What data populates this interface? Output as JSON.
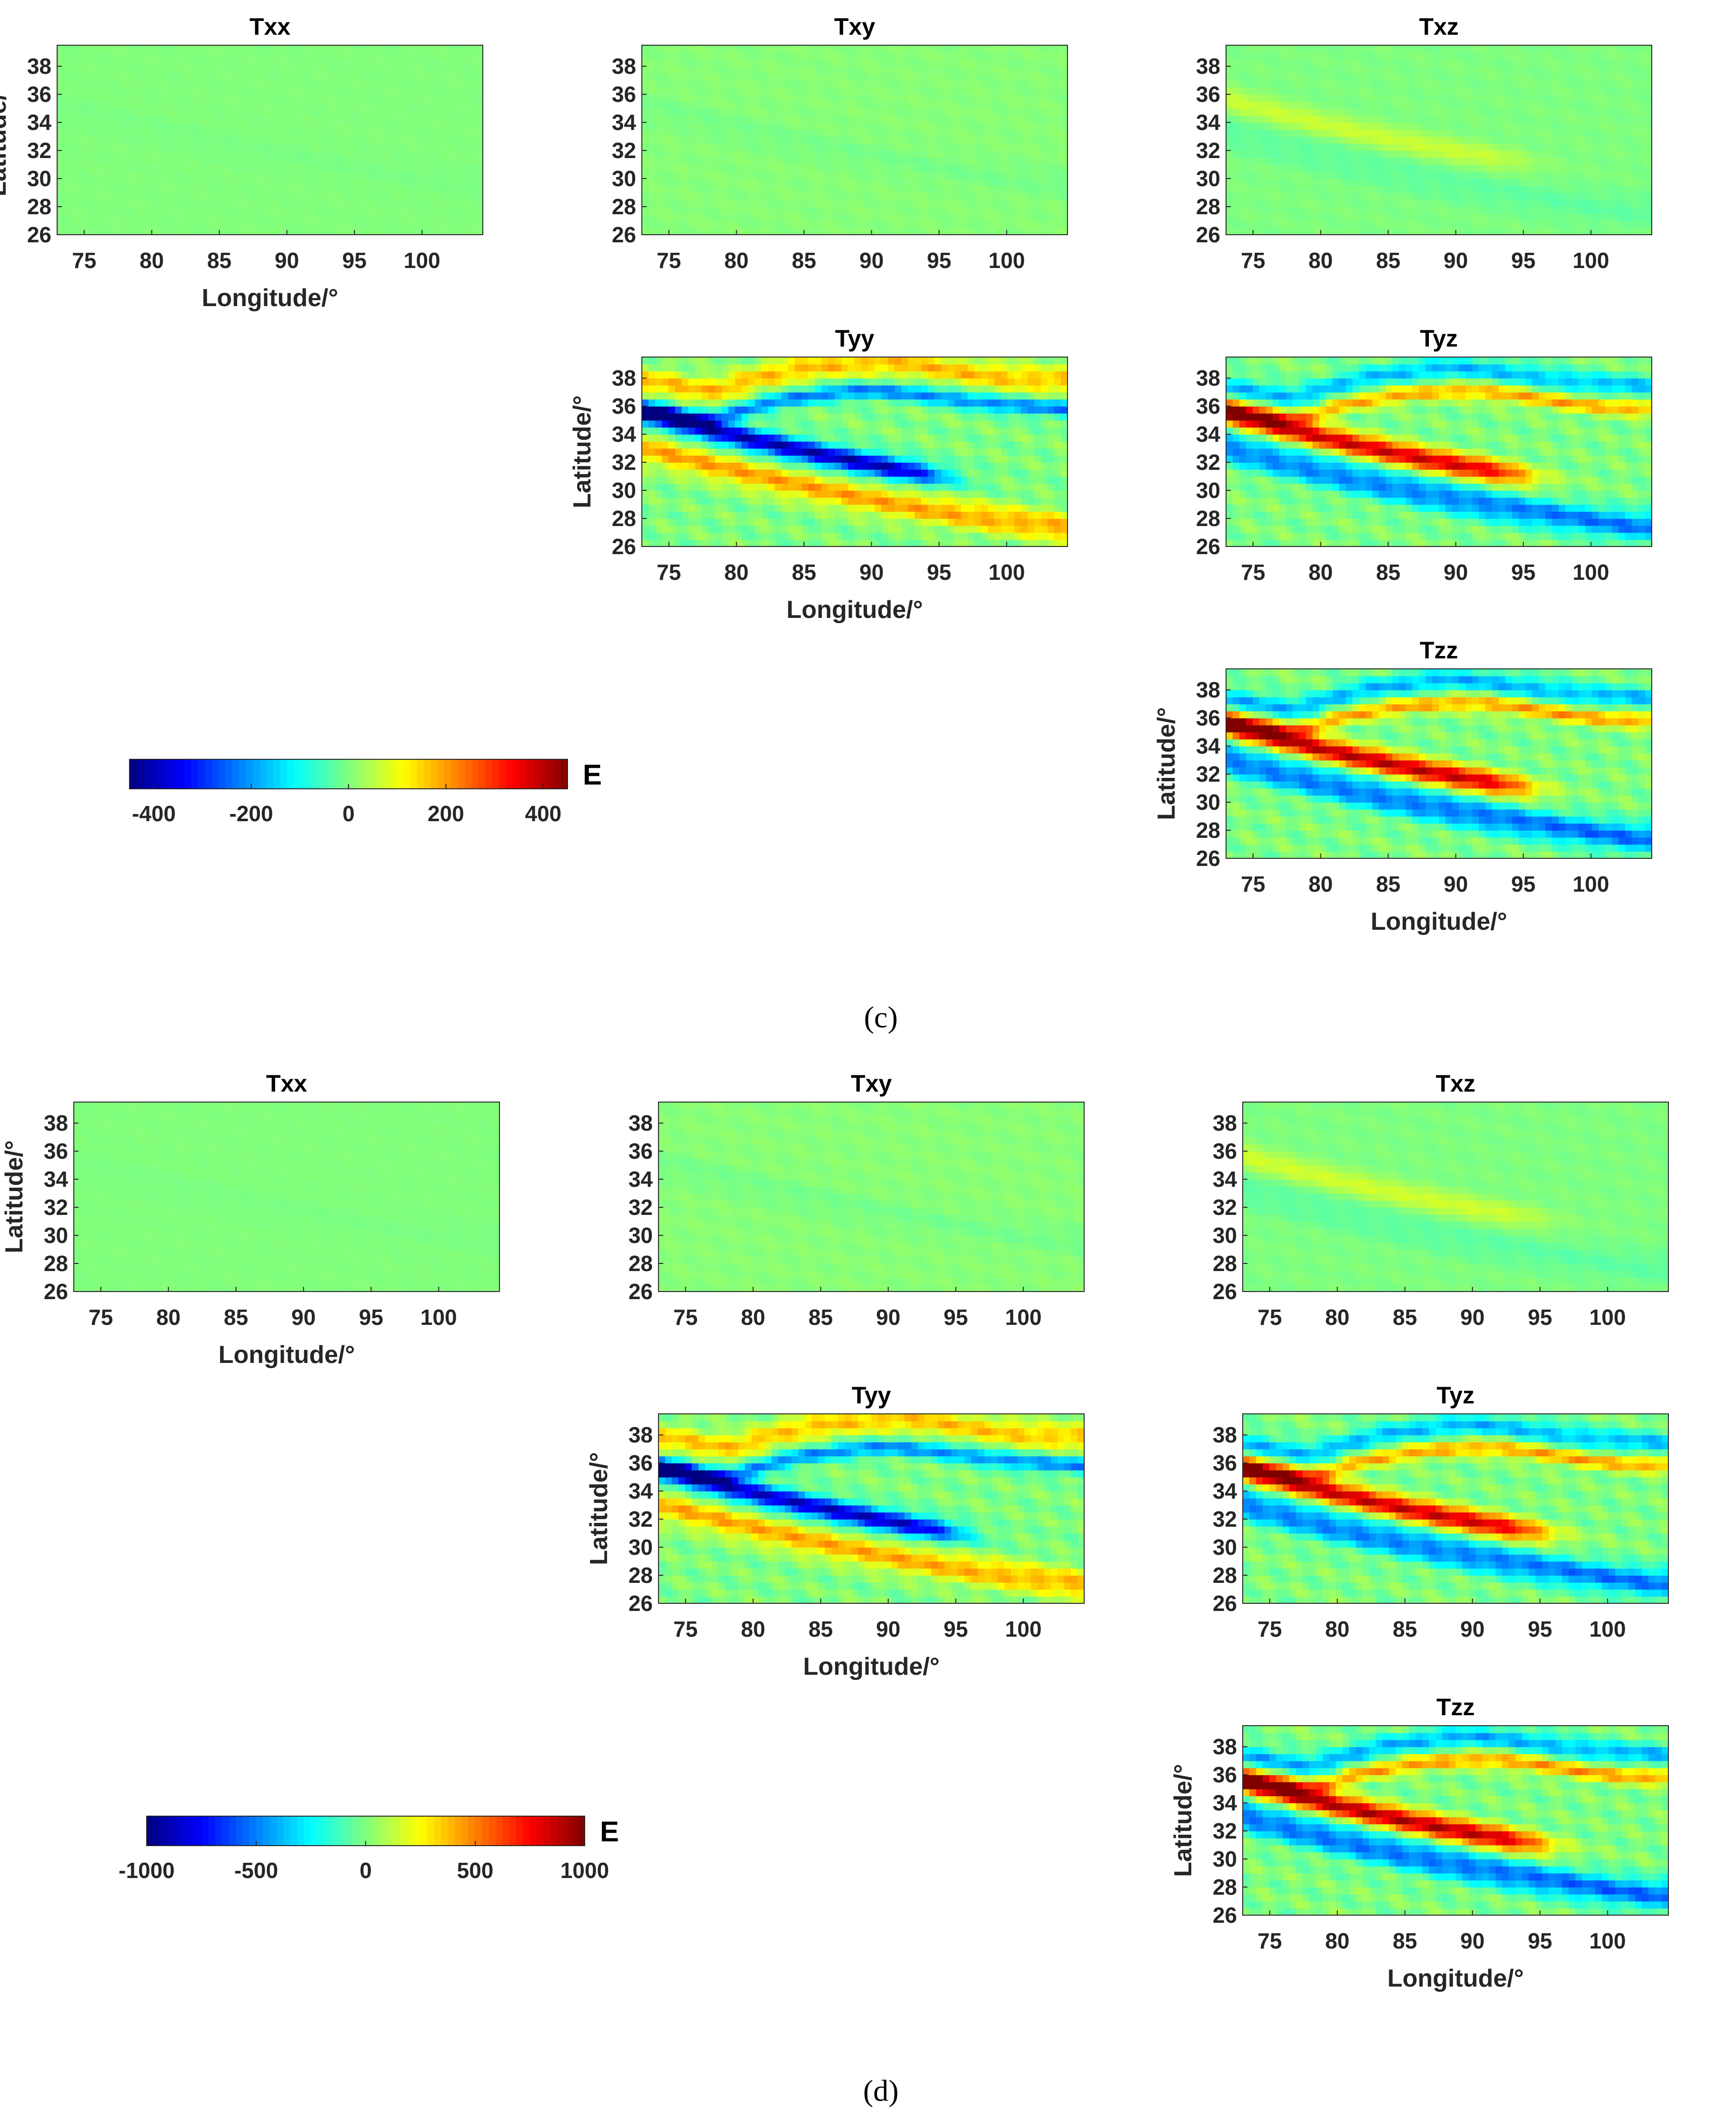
{
  "colormap": "jet",
  "colors": {
    "jet_low": "#00008f",
    "jet_mid": "#00ff80",
    "jet_high": "#7f0000"
  },
  "subfigures": [
    {
      "label": "(c)",
      "colorbar": {
        "ticks": [
          -400,
          -200,
          0,
          200,
          400
        ],
        "unit": "E",
        "range": [
          -450,
          450
        ]
      }
    },
    {
      "label": "(d)",
      "colorbar": {
        "ticks": [
          -1000,
          -500,
          0,
          500,
          1000
        ],
        "unit": "E",
        "range": [
          -1000,
          1000
        ]
      }
    }
  ],
  "chart_data": [
    {
      "type": "heatmap",
      "panel": "c-Txx",
      "title": "Txx",
      "xlabel": "Longitude/°",
      "ylabel": "Latitude/°",
      "xlim": [
        73,
        104.5
      ],
      "ylim": [
        26,
        39.5
      ],
      "xticks": [
        75,
        80,
        85,
        90,
        95,
        100
      ],
      "yticks": [
        26,
        28,
        30,
        32,
        34,
        36,
        38
      ],
      "colorbar_range": [
        -450,
        450
      ],
      "amplitude": 30,
      "pattern": "weak"
    },
    {
      "type": "heatmap",
      "panel": "c-Txy",
      "title": "Txy",
      "xlabel": "",
      "ylabel": "",
      "xlim": [
        73,
        104.5
      ],
      "ylim": [
        26,
        39.5
      ],
      "xticks": [
        75,
        80,
        85,
        90,
        95,
        100
      ],
      "yticks": [
        26,
        28,
        30,
        32,
        34,
        36,
        38
      ],
      "colorbar_range": [
        -450,
        450
      ],
      "amplitude": 70,
      "pattern": "weak"
    },
    {
      "type": "heatmap",
      "panel": "c-Txz",
      "title": "Txz",
      "xlabel": "",
      "ylabel": "",
      "xlim": [
        73,
        104.5
      ],
      "ylim": [
        26,
        39.5
      ],
      "xticks": [
        75,
        80,
        85,
        90,
        95,
        100
      ],
      "yticks": [
        26,
        28,
        30,
        32,
        34,
        36,
        38
      ],
      "colorbar_range": [
        -450,
        450
      ],
      "amplitude": 90,
      "pattern": "southpos"
    },
    {
      "type": "heatmap",
      "panel": "c-Tyy",
      "title": "Tyy",
      "xlabel": "Longitude/°",
      "ylabel": "Latitude/°",
      "xlim": [
        73,
        104.5
      ],
      "ylim": [
        26,
        39.5
      ],
      "xticks": [
        75,
        80,
        85,
        90,
        95,
        100
      ],
      "yticks": [
        26,
        28,
        30,
        32,
        34,
        36,
        38
      ],
      "colorbar_range": [
        -450,
        450
      ],
      "amplitude": 420,
      "pattern": "tyy"
    },
    {
      "type": "heatmap",
      "panel": "c-Tyz",
      "title": "Tyz",
      "xlabel": "",
      "ylabel": "",
      "xlim": [
        73,
        104.5
      ],
      "ylim": [
        26,
        39.5
      ],
      "xticks": [
        75,
        80,
        85,
        90,
        95,
        100
      ],
      "yticks": [
        26,
        28,
        30,
        32,
        34,
        36,
        38
      ],
      "colorbar_range": [
        -450,
        450
      ],
      "amplitude": 420,
      "pattern": "pos"
    },
    {
      "type": "heatmap",
      "panel": "c-Tzz",
      "title": "Tzz",
      "xlabel": "Longitude/°",
      "ylabel": "Latitude/°",
      "xlim": [
        73,
        104.5
      ],
      "ylim": [
        26,
        39.5
      ],
      "xticks": [
        75,
        80,
        85,
        90,
        95,
        100
      ],
      "yticks": [
        26,
        28,
        30,
        32,
        34,
        36,
        38
      ],
      "colorbar_range": [
        -450,
        450
      ],
      "amplitude": 440,
      "pattern": "pos"
    },
    {
      "type": "heatmap",
      "panel": "d-Txx",
      "title": "Txx",
      "xlabel": "Longitude/°",
      "ylabel": "Latitude/°",
      "xlim": [
        73,
        104.5
      ],
      "ylim": [
        26,
        39.5
      ],
      "xticks": [
        75,
        80,
        85,
        90,
        95,
        100
      ],
      "yticks": [
        26,
        28,
        30,
        32,
        34,
        36,
        38
      ],
      "colorbar_range": [
        -1000,
        1000
      ],
      "amplitude": 60,
      "pattern": "weak"
    },
    {
      "type": "heatmap",
      "panel": "d-Txy",
      "title": "Txy",
      "xlabel": "",
      "ylabel": "",
      "xlim": [
        73,
        104.5
      ],
      "ylim": [
        26,
        39.5
      ],
      "xticks": [
        75,
        80,
        85,
        90,
        95,
        100
      ],
      "yticks": [
        26,
        28,
        30,
        32,
        34,
        36,
        38
      ],
      "colorbar_range": [
        -1000,
        1000
      ],
      "amplitude": 180,
      "pattern": "weak"
    },
    {
      "type": "heatmap",
      "panel": "d-Txz",
      "title": "Txz",
      "xlabel": "",
      "ylabel": "",
      "xlim": [
        73,
        104.5
      ],
      "ylim": [
        26,
        39.5
      ],
      "xticks": [
        75,
        80,
        85,
        90,
        95,
        100
      ],
      "yticks": [
        26,
        28,
        30,
        32,
        34,
        36,
        38
      ],
      "colorbar_range": [
        -1000,
        1000
      ],
      "amplitude": 220,
      "pattern": "southpos"
    },
    {
      "type": "heatmap",
      "panel": "d-Tyy",
      "title": "Tyy",
      "xlabel": "Longitude/°",
      "ylabel": "Latitude/°",
      "xlim": [
        73,
        104.5
      ],
      "ylim": [
        26,
        39.5
      ],
      "xticks": [
        75,
        80,
        85,
        90,
        95,
        100
      ],
      "yticks": [
        26,
        28,
        30,
        32,
        34,
        36,
        38
      ],
      "colorbar_range": [
        -1000,
        1000
      ],
      "amplitude": 900,
      "pattern": "tyy"
    },
    {
      "type": "heatmap",
      "panel": "d-Tyz",
      "title": "Tyz",
      "xlabel": "",
      "ylabel": "",
      "xlim": [
        73,
        104.5
      ],
      "ylim": [
        26,
        39.5
      ],
      "xticks": [
        75,
        80,
        85,
        90,
        95,
        100
      ],
      "yticks": [
        26,
        28,
        30,
        32,
        34,
        36,
        38
      ],
      "colorbar_range": [
        -1000,
        1000
      ],
      "amplitude": 950,
      "pattern": "pos"
    },
    {
      "type": "heatmap",
      "panel": "d-Tzz",
      "title": "Tzz",
      "xlabel": "Longitude/°",
      "ylabel": "Latitude/°",
      "xlim": [
        73,
        104.5
      ],
      "ylim": [
        26,
        39.5
      ],
      "xticks": [
        75,
        80,
        85,
        90,
        95,
        100
      ],
      "yticks": [
        26,
        28,
        30,
        32,
        34,
        36,
        38
      ],
      "colorbar_range": [
        -1000,
        1000
      ],
      "amplitude": 1000,
      "pattern": "pos"
    }
  ]
}
